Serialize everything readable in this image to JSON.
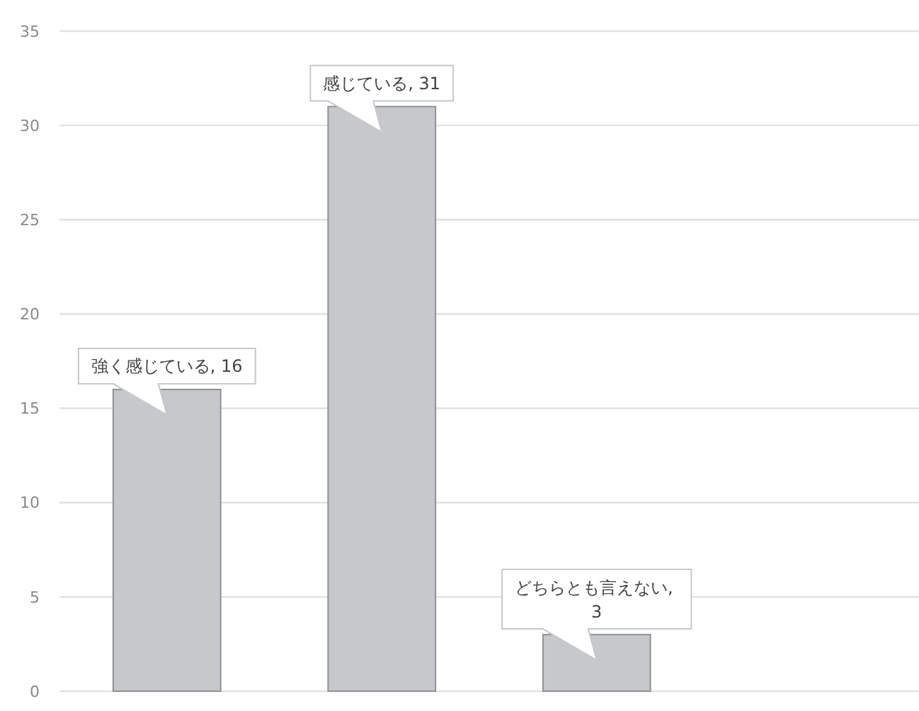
{
  "chart_data": {
    "type": "bar",
    "categories": [
      null,
      null,
      null,
      null
    ],
    "values": [
      16,
      31,
      3,
      null
    ],
    "value_labels": [
      "強く感じている, 16",
      "感じている, 31",
      "どちらとも言えない, 3",
      null
    ],
    "color": "#c6c8cb",
    "ylim": [
      0,
      35
    ],
    "yticks": [
      0,
      5,
      10,
      15,
      20,
      25,
      30,
      35
    ],
    "grid": "y",
    "tick_labels": "y"
  }
}
